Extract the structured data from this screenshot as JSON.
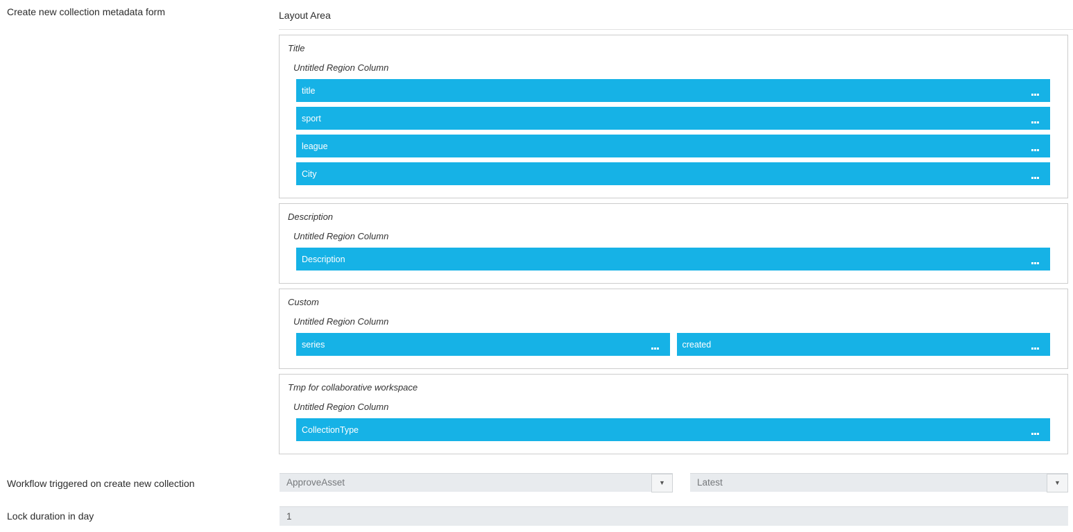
{
  "header": {
    "form_label": "Create new collection metadata form",
    "layout_area_title": "Layout Area"
  },
  "colors": {
    "accent": "#16b2e6",
    "field_bg": "#e8ebee"
  },
  "layout_area": {
    "sections": [
      {
        "label": "Title",
        "region_label": "Untitled Region Column",
        "rows": [
          [
            "title"
          ],
          [
            "sport"
          ],
          [
            "league"
          ],
          [
            "City"
          ]
        ]
      },
      {
        "label": "Description",
        "region_label": "Untitled Region Column",
        "rows": [
          [
            "Description"
          ]
        ]
      },
      {
        "label": "Custom",
        "region_label": "Untitled Region Column",
        "rows": [
          [
            "series",
            "created"
          ]
        ]
      },
      {
        "label": "Tmp for collaborative workspace",
        "region_label": "Untitled Region Column",
        "rows": [
          [
            "CollectionType"
          ]
        ]
      }
    ]
  },
  "workflow": {
    "label": "Workflow triggered on create new collection",
    "workflow_dropdown_value": "ApproveAsset",
    "version_dropdown_value": "Latest"
  },
  "lock_duration": {
    "label": "Lock duration in day",
    "value": "1"
  }
}
